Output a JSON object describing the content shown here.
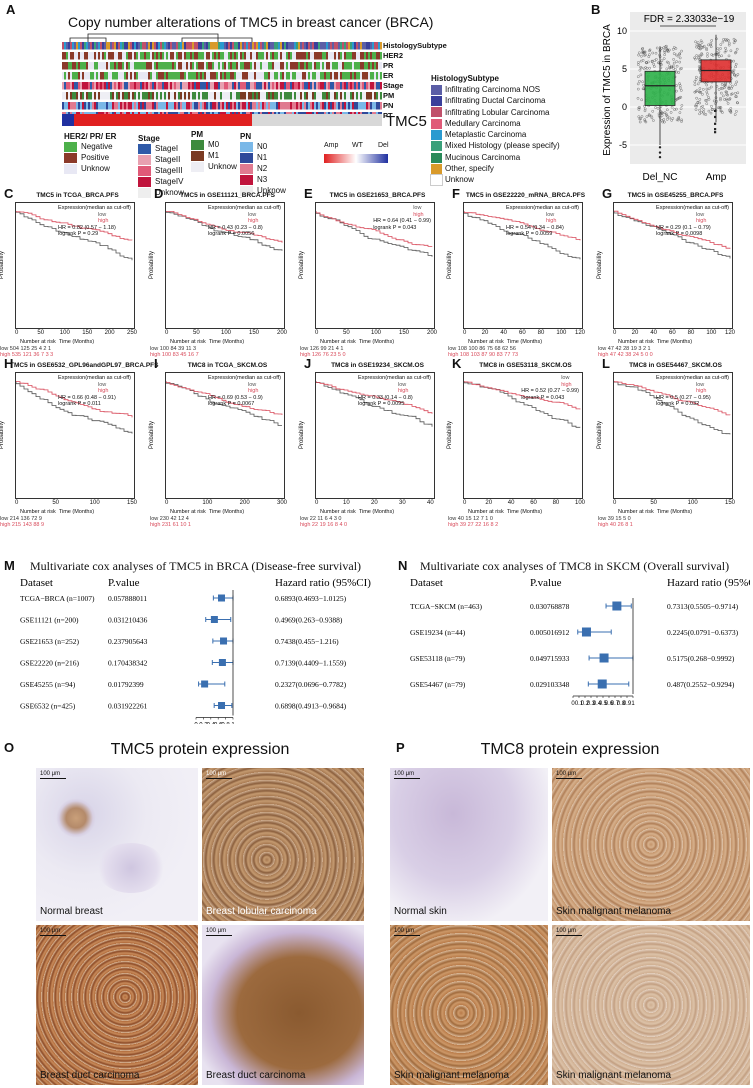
{
  "panels": {
    "A": "A",
    "B": "B",
    "C": "C",
    "D": "D",
    "E": "E",
    "F": "F",
    "G": "G",
    "H": "H",
    "I": "I",
    "J": "J",
    "K": "K",
    "L": "L",
    "M": "M",
    "N": "N",
    "O": "O",
    "P": "P"
  },
  "heatmap": {
    "title": "Copy number alterations of TMC5 in breast cancer (BRCA)",
    "row_labels": [
      "HistologySubtype",
      "HER2",
      "PR",
      "ER",
      "Stage",
      "PM",
      "PN",
      "PT"
    ],
    "gene_label": "TMC5",
    "legend_receptor_title": "HER2/ PR/ ER",
    "legend_receptor": [
      {
        "label": "Negative",
        "color": "#4db04a"
      },
      {
        "label": "Positive",
        "color": "#8b3a2a"
      },
      {
        "label": "Unknow",
        "color": "#e8e8f4"
      }
    ],
    "legend_stage_title": "Stage",
    "legend_stage": [
      {
        "label": "StageI",
        "color": "#2f5aa8"
      },
      {
        "label": "StageII",
        "color": "#e8a0b0"
      },
      {
        "label": "StageIII",
        "color": "#e05a78"
      },
      {
        "label": "StageIV",
        "color": "#c0143c"
      },
      {
        "label": "Unknow",
        "color": "#eeeeee"
      }
    ],
    "legend_pm_title": "PM",
    "legend_pm": [
      {
        "label": "M0",
        "color": "#3d8a3d"
      },
      {
        "label": "M1",
        "color": "#7a3a22"
      },
      {
        "label": "Unknow",
        "color": "#eeeef4"
      }
    ],
    "legend_pn_title": "PN",
    "legend_pn": [
      {
        "label": "N0",
        "color": "#7ab8e8"
      },
      {
        "label": "N1",
        "color": "#2f4a9a"
      },
      {
        "label": "N2",
        "color": "#e07a90"
      },
      {
        "label": "N3",
        "color": "#c0143c"
      },
      {
        "label": "Unknow",
        "color": "#eeeeee"
      }
    ],
    "cna_legend": [
      "Amp",
      "WT",
      "Del"
    ],
    "hist_title": "HistologySubtype",
    "hist_legend": [
      {
        "label": "Infiltrating Carcinoma NOS",
        "color": "#5b5ea6"
      },
      {
        "label": "Infiltrating Ductal Carcinoma",
        "color": "#3a3f9a"
      },
      {
        "label": "Infiltrating Lobular Carcinoma",
        "color": "#c0506a"
      },
      {
        "label": "Medullary Carcinoma",
        "color": "#e05a78"
      },
      {
        "label": "Metaplastic Carcinoma",
        "color": "#2a9ad0"
      },
      {
        "label": "Mixed Histology (please specify)",
        "color": "#3aa07a"
      },
      {
        "label": "Mucinous Carcinoma",
        "color": "#2a8a5a"
      },
      {
        "label": "Other, specify",
        "color": "#d99a2a"
      },
      {
        "label": "Unknow",
        "color": "#ffffff"
      }
    ]
  },
  "boxplot": {
    "fdr": "FDR = 2.33033e−19",
    "ylabel": "Expression  of  TMC5 in BRCA",
    "groups": [
      "Del_NC",
      "Amp"
    ],
    "yticks": [
      "-5",
      "0",
      "5",
      "10"
    ]
  },
  "km_plots": [
    {
      "id": "C",
      "title": "TMC5 in TCGA_BRCA.PFS",
      "stats": [
        "Expression(median as cut-off)",
        "HR = 0.82 (0.57 − 1.18)",
        "logrank P = 0.29"
      ],
      "xticks": [
        "0",
        "50",
        "100",
        "150",
        "200",
        "250"
      ],
      "risk_low": "low  504  125  25  4  2  1",
      "risk_high": "high 535  121  36  7  3  3"
    },
    {
      "id": "D",
      "title": "TMC5 in GSE11121_BRCA.PFS",
      "stats": [
        "Expression(median as cut-off)",
        "HR = 0.43 (0.23 − 0.8)",
        "logrank P = 0.0056"
      ],
      "xticks": [
        "0",
        "50",
        "100",
        "150",
        "200"
      ],
      "risk_low": "low  100  84  39  11  3",
      "risk_high": "high 100  83  45  16  7"
    },
    {
      "id": "E",
      "title": "TMC5 in GSE21653_BRCA.PFS",
      "stats": [
        "HR = 0.64 (0.41 − 0.99)",
        "logrank P = 0.043"
      ],
      "xticks": [
        "0",
        "50",
        "100",
        "150",
        "200"
      ],
      "risk_low": "low  126  99  21  4  1",
      "risk_high": "high 126  76  23  5  0"
    },
    {
      "id": "F",
      "title": "TMC5 in GSE22220_mRNA_BRCA.PFS",
      "stats": [
        "Expression(median as cut-off)",
        "HR = 0.54 (0.34 − 0.84)",
        "logrank P = 0.0059"
      ],
      "xticks": [
        "0",
        "20",
        "40",
        "60",
        "80",
        "100",
        "120"
      ],
      "risk_low": "low  108  100  86  75  68  62  56",
      "risk_high": "high 108  103  87  90  83  77  73"
    },
    {
      "id": "G",
      "title": "TMC5 in GSE45255_BRCA.PFS",
      "stats": [
        "Expression(median as cut-off)",
        "HR = 0.29 (0.1 − 0.79)",
        "logrank P = 0.0098"
      ],
      "xticks": [
        "0",
        "20",
        "40",
        "60",
        "80",
        "100",
        "120"
      ],
      "risk_low": "low  47  42  28  19  3  2  1",
      "risk_high": "high 47  42  38  24  5  0  0"
    },
    {
      "id": "H",
      "title": "TMC5 in GSE6532_GPL96andGPL97_BRCA.PFS",
      "stats": [
        "Expression(median as cut-off)",
        "HR = 0.66 (0.48 − 0.91)",
        "logrank P = 0.011"
      ],
      "xticks": [
        "0",
        "50",
        "100",
        "150"
      ],
      "risk_low": "low  214  136  72  9",
      "risk_high": "high 215  143  88  9"
    },
    {
      "id": "I",
      "title": "TMC8 in TCGA_SKCM.OS",
      "stats": [
        "Expression(median as cut-off)",
        "HR = 0.69 (0.53 − 0.9)",
        "logrank P = 0.0067"
      ],
      "xticks": [
        "0",
        "100",
        "200",
        "300"
      ],
      "risk_low": "low  230  42  12  4",
      "risk_high": "high 231  61  10  1"
    },
    {
      "id": "J",
      "title": "TMC8 in GSE19234_SKCM.OS",
      "stats": [
        "Expression(median as cut-off)",
        "HR = 0.33 (0.14 − 0.8)",
        "logrank P = 0.0095"
      ],
      "xticks": [
        "0",
        "10",
        "20",
        "30",
        "40"
      ],
      "risk_low": "low  22  11  6  4  3  0",
      "risk_high": "high 22  19  16  8  4  0"
    },
    {
      "id": "K",
      "title": "TMC8 in GSE53118_SKCM.OS",
      "stats": [
        "HR = 0.52 (0.27 − 0.99)",
        "logrank P = 0.043"
      ],
      "xticks": [
        "0",
        "20",
        "40",
        "60",
        "80",
        "100"
      ],
      "risk_low": "low  40  15  12  7  1  0",
      "risk_high": "high 39  27  22  16  8  2"
    },
    {
      "id": "L",
      "title": "TMC8 in GSE54467_SKCM.OS",
      "stats": [
        "Expression(median as cut-off)",
        "HR = 0.5 (0.27 − 0.95)",
        "logrank P = 0.032"
      ],
      "xticks": [
        "0",
        "50",
        "100",
        "150"
      ],
      "risk_low": "low  39  15  5  0",
      "risk_high": "high 40  26  8  1"
    }
  ],
  "km_common": {
    "xlabel": "Time (Months)",
    "ylabel": "Probability",
    "risk_label": "Number at risk",
    "legend_low": "low",
    "legend_high": "high"
  },
  "forest_m": {
    "title": "Multivariate cox analyses of TMC5 in BRCA (Disease-free survival)",
    "headers": [
      "Dataset",
      "P.value",
      "Hazard ratio (95%CI)"
    ],
    "rows": [
      {
        "dataset": "TCGA−BRCA (n=1007)",
        "p": "0.057888011",
        "hr_text": "0.6893(0.4693−1.0125)",
        "hr": 0.6893,
        "lo": 0.4693,
        "hi": 1.0125
      },
      {
        "dataset": "GSE11121 (n=200)",
        "p": "0.031210436",
        "hr_text": "0.4969(0.263−0.9388)",
        "hr": 0.4969,
        "lo": 0.263,
        "hi": 0.9388
      },
      {
        "dataset": "GSE21653 (n=252)",
        "p": "0.237905643",
        "hr_text": "0.7438(0.455−1.216)",
        "hr": 0.7438,
        "lo": 0.455,
        "hi": 1.216
      },
      {
        "dataset": "GSE22220 (n=216)",
        "p": "0.170438342",
        "hr_text": "0.7139(0.4409−1.1559)",
        "hr": 0.7139,
        "lo": 0.4409,
        "hi": 1.1559
      },
      {
        "dataset": "GSE45255 (n=94)",
        "p": "0.01792399",
        "hr_text": "0.2327(0.0696−0.7782)",
        "hr": 0.2327,
        "lo": 0.0696,
        "hi": 0.7782
      },
      {
        "dataset": "GSE6532 (n=425)",
        "p": "0.031922261",
        "hr_text": "0.6898(0.4913−0.9684)",
        "hr": 0.6898,
        "lo": 0.4913,
        "hi": 0.9684
      }
    ],
    "axis_ticks": [
      "0",
      "0.2",
      "0.4",
      "0.6",
      "0.8",
      "1"
    ]
  },
  "forest_n": {
    "title": "Multivariate cox analyses of TMC8 in SKCM (Overall survival)",
    "headers": [
      "Dataset",
      "P.value",
      "Hazard ratio (95%CI)"
    ],
    "rows": [
      {
        "dataset": "TCGA−SKCM (n=463)",
        "p": "0.030768878",
        "hr_text": "0.7313(0.5505−0.9714)",
        "hr": 0.7313,
        "lo": 0.5505,
        "hi": 0.9714
      },
      {
        "dataset": "GSE19234 (n=44)",
        "p": "0.005016912",
        "hr_text": "0.2245(0.0791−0.6373)",
        "hr": 0.2245,
        "lo": 0.0791,
        "hi": 0.6373
      },
      {
        "dataset": "GSE53118 (n=79)",
        "p": "0.049715933",
        "hr_text": "0.5175(0.268−0.9992)",
        "hr": 0.5175,
        "lo": 0.268,
        "hi": 0.9992
      },
      {
        "dataset": "GSE54467 (n=79)",
        "p": "0.029103348",
        "hr_text": "0.487(0.2552−0.9294)",
        "hr": 0.487,
        "lo": 0.2552,
        "hi": 0.9294
      }
    ],
    "axis_ticks": [
      "0",
      "0.1",
      "0.2",
      "0.3",
      "0.4",
      "0.5",
      "0.6",
      "0.7",
      "0.8",
      "0.9",
      "1"
    ]
  },
  "ihc_o": {
    "title": "TMC5 protein expression",
    "scale": "100 μm",
    "images": [
      "Normal breast",
      "Breast lobular carcinoma",
      "Breast duct carcinoma",
      "Breast duct carcinoma"
    ]
  },
  "ihc_p": {
    "title": "TMC8 protein expression",
    "scale": "100 μm",
    "images": [
      "Normal skin",
      "Skin malignant melanoma",
      "Skin malignant melanoma",
      "Skin malignant melanoma"
    ]
  }
}
